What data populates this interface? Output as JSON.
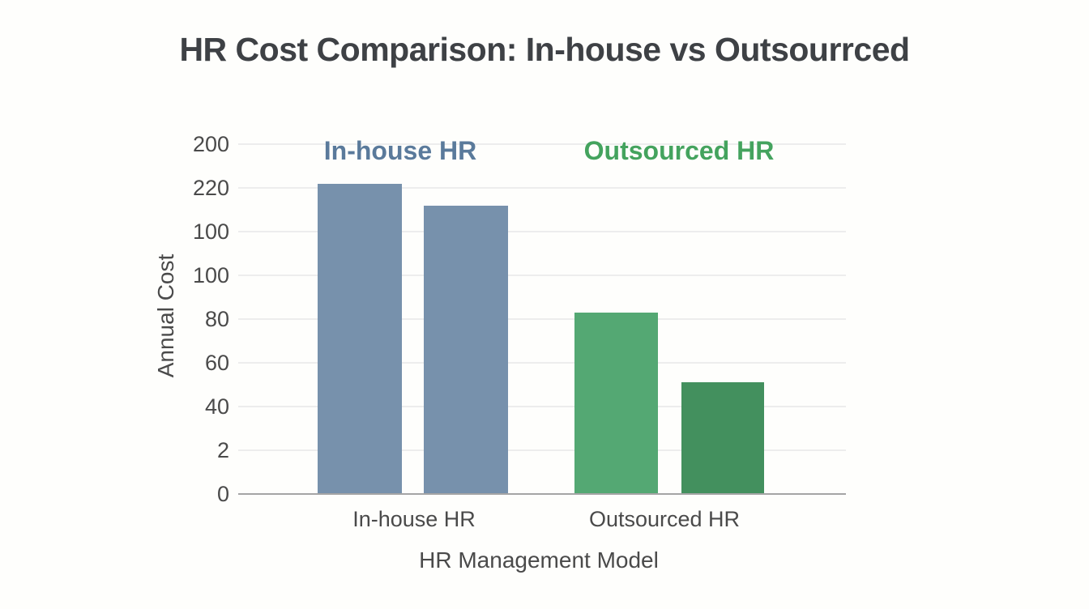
{
  "chart_data": {
    "type": "bar",
    "title": "HR Cost Comparison: In-house vs Outsourrced",
    "xlabel": "HR Management Model",
    "ylabel": "Annual Cost",
    "categories": [
      "In-house HR",
      "Outsourced HR"
    ],
    "y_tick_labels_bottom_to_top": [
      "0",
      "2",
      "40",
      "60",
      "80",
      "100",
      "100",
      "220",
      "200"
    ],
    "ylim": [
      0,
      160
    ],
    "tick_step": 20,
    "grid": true,
    "legend_position": "inside-top",
    "bars": [
      {
        "group": "In-house HR",
        "value": 142,
        "color": "#7791ac"
      },
      {
        "group": "In-house HR",
        "value": 132,
        "color": "#7791ac"
      },
      {
        "group": "Outsourced HR",
        "value": 83,
        "color": "#54a873"
      },
      {
        "group": "Outsourced HR",
        "value": 51,
        "color": "#43905e"
      }
    ],
    "annotations": [
      {
        "text": "In-house HR",
        "color": "#5a7a9b"
      },
      {
        "text": "Outsourced HR",
        "color": "#44a35e"
      }
    ],
    "colors": {
      "title": "#3e4145",
      "tick_text": "#4a4a4a",
      "gridline": "#ededed",
      "axis_line": "#a5a5a5",
      "background": "#fefefc"
    }
  }
}
